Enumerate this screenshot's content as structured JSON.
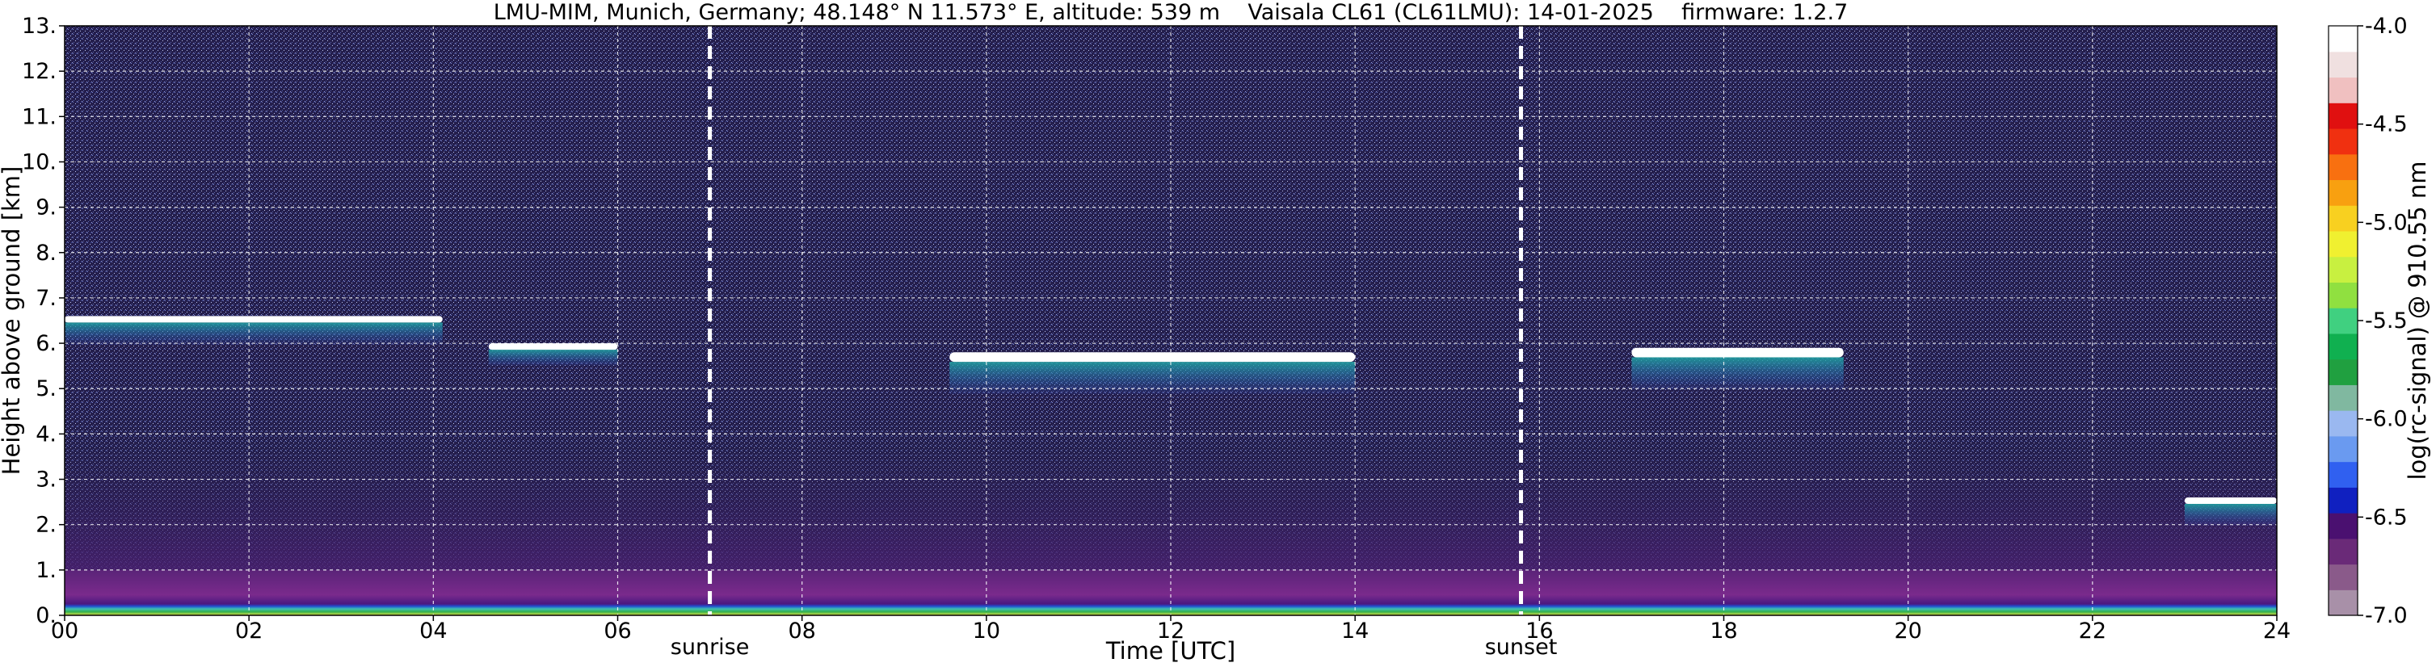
{
  "chart_data": {
    "type": "heatmap",
    "title": "LMU-MIM, Munich, Germany; 48.148° N 11.573° E, altitude: 539 m    Vaisala CL61 (CL61LMU): 14-01-2025    firmware: 1.2.7",
    "xlabel": "Time [UTC]",
    "ylabel": "Height above ground [km]",
    "xlim": [
      0,
      24
    ],
    "ylim": [
      0,
      13
    ],
    "x_ticks": [
      "00",
      "02",
      "04",
      "06",
      "08",
      "10",
      "12",
      "14",
      "16",
      "18",
      "20",
      "22",
      "24"
    ],
    "x_tick_values": [
      0,
      2,
      4,
      6,
      8,
      10,
      12,
      14,
      16,
      18,
      20,
      22,
      24
    ],
    "y_ticks": [
      "0.",
      "1.",
      "2.",
      "3.",
      "4.",
      "5.",
      "6.",
      "7.",
      "8.",
      "9.",
      "10.",
      "11.",
      "12.",
      "13."
    ],
    "y_tick_values": [
      0,
      1,
      2,
      3,
      4,
      5,
      6,
      7,
      8,
      9,
      10,
      11,
      12,
      13
    ],
    "grid": true,
    "annotations": [
      {
        "label": "sunrise",
        "x": 7.0
      },
      {
        "label": "sunset",
        "x": 15.8
      }
    ],
    "colorbar": {
      "label": "log(rc-signal) @ 910.55 nm",
      "range": [
        -7.0,
        -4.0
      ],
      "ticks": [
        "-4.0",
        "-4.5",
        "-5.0",
        "-5.5",
        "-6.0",
        "-6.5",
        "-7.0"
      ],
      "tick_values": [
        -4.0,
        -4.5,
        -5.0,
        -5.5,
        -6.0,
        -6.5,
        -7.0
      ],
      "colors_bottom_to_top": [
        "#a890a8",
        "#8a5a8a",
        "#6a2a78",
        "#4a1070",
        "#1020c0",
        "#3060f0",
        "#6a9af0",
        "#9ab8f0",
        "#80b8a0",
        "#20a040",
        "#10b050",
        "#40d080",
        "#90e040",
        "#c8f040",
        "#f0f030",
        "#f8d020",
        "#f8a010",
        "#f87010",
        "#f03010",
        "#e01010",
        "#f0c0c0",
        "#f0e0e0",
        "#ffffff"
      ]
    },
    "features": [
      {
        "name": "cloud layer",
        "x_range": [
          0.0,
          4.1
        ],
        "height_km": [
          6.2,
          6.6
        ]
      },
      {
        "name": "cloud layer",
        "x_range": [
          4.6,
          6.0
        ],
        "height_km": [
          5.7,
          6.0
        ]
      },
      {
        "name": "cloud layer",
        "x_range": [
          9.6,
          14.0
        ],
        "height_km": [
          5.2,
          5.8
        ]
      },
      {
        "name": "cloud layer",
        "x_range": [
          17.0,
          19.3
        ],
        "height_km": [
          5.3,
          5.9
        ]
      },
      {
        "name": "cloud layer",
        "x_range": [
          23.0,
          24.0
        ],
        "height_km": [
          2.2,
          2.6
        ]
      },
      {
        "name": "boundary layer",
        "x_range": [
          0,
          24
        ],
        "height_km": [
          0,
          1.0
        ]
      }
    ]
  }
}
